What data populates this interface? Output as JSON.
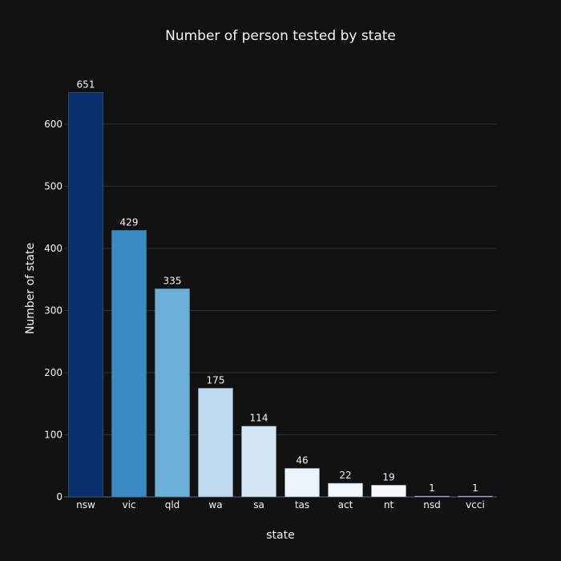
{
  "chart_data": {
    "type": "bar",
    "title": "Number of person tested by state",
    "xlabel": "state",
    "ylabel": "Number of state",
    "categories": [
      "nsw",
      "vic",
      "qld",
      "wa",
      "sa",
      "tas",
      "act",
      "nt",
      "nsd",
      "vcci"
    ],
    "values": [
      651,
      429,
      335,
      175,
      114,
      46,
      22,
      19,
      1,
      1
    ],
    "data_labels": [
      "651",
      "429",
      "335",
      "175",
      "114",
      "46",
      "22",
      "19",
      "1",
      "1"
    ],
    "ylim": [
      0,
      685
    ],
    "yticks": [
      0,
      100,
      200,
      300,
      400,
      500,
      600
    ],
    "grid": true,
    "legend": "none",
    "colorscale": "Blues",
    "bar_colors": [
      "#08306b",
      "#3a8ac4",
      "#6aafd6",
      "#c0d9ee",
      "#d4e5f4",
      "#ebf3fb",
      "#f3f8fd",
      "#f5f9fe",
      "#f7fbff",
      "#f7fbff"
    ],
    "background_color": "#111111",
    "grid_color": "#283442",
    "text_color": "#f2f5fa"
  }
}
